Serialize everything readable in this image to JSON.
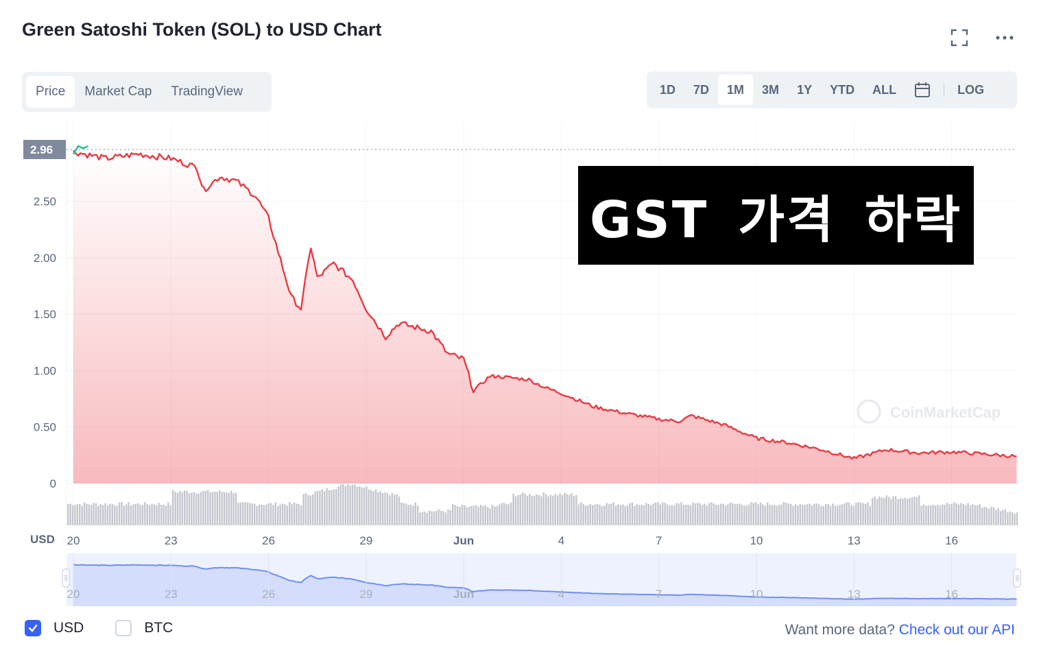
{
  "title": "Green Satoshi Token (SOL) to USD Chart",
  "icons": {
    "fullscreen": "fullscreen-icon",
    "more": "more-icon",
    "calendar": "calendar-icon",
    "check": "check-icon"
  },
  "chart_tabs": [
    {
      "label": "Price",
      "active": true
    },
    {
      "label": "Market Cap",
      "active": false
    },
    {
      "label": "TradingView",
      "active": false
    }
  ],
  "range_tabs": [
    {
      "label": "1D",
      "active": false
    },
    {
      "label": "7D",
      "active": false
    },
    {
      "label": "1M",
      "active": true
    },
    {
      "label": "3M",
      "active": false
    },
    {
      "label": "1Y",
      "active": false
    },
    {
      "label": "YTD",
      "active": false
    },
    {
      "label": "ALL",
      "active": false
    }
  ],
  "log_label": "LOG",
  "current_price_label": "2.96",
  "axis_currency": "USD",
  "watermark": "CoinMarketCap",
  "overlay_text": "GST 가격 하락",
  "colors": {
    "line": "#ea3943",
    "up_line": "#16c784",
    "accent": "#3861fb",
    "navigator": "#6f8ff0",
    "volume": "#c3c6cc"
  },
  "footer": {
    "usd_label": "USD",
    "usd_checked": true,
    "btc_label": "BTC",
    "btc_checked": false,
    "api_prefix": "Want more data? ",
    "api_link": "Check out our API"
  },
  "chart_data": {
    "type": "line",
    "y_ticks": [
      "0",
      "0.50",
      "1.00",
      "1.50",
      "2.00",
      "2.50"
    ],
    "ylim": [
      0,
      2.96
    ],
    "x_ticks": [
      "20",
      "23",
      "26",
      "29",
      "Jun",
      "4",
      "7",
      "10",
      "13",
      "16"
    ],
    "grid": true,
    "series": [
      {
        "values": [
          [
            "20",
            2.94
          ],
          [
            "21",
            2.88
          ],
          [
            "22",
            2.92
          ],
          [
            "23",
            2.88
          ],
          [
            "23.8",
            2.8
          ],
          [
            "24",
            2.6
          ],
          [
            "24.5",
            2.72
          ],
          [
            "25",
            2.68
          ],
          [
            "25.6",
            2.55
          ],
          [
            "26",
            2.35
          ],
          [
            "26.3",
            2.05
          ],
          [
            "26.7",
            1.65
          ],
          [
            "27",
            1.55
          ],
          [
            "27.3",
            2.1
          ],
          [
            "27.5",
            1.82
          ],
          [
            "28",
            1.95
          ],
          [
            "28.6",
            1.8
          ],
          [
            "29",
            1.55
          ],
          [
            "29.6",
            1.3
          ],
          [
            "30",
            1.42
          ],
          [
            "31",
            1.35
          ],
          [
            "31.5",
            1.15
          ],
          [
            "Jun",
            1.1
          ],
          [
            "1.3",
            0.82
          ],
          [
            "1.8",
            0.95
          ],
          [
            "2",
            0.95
          ],
          [
            "3",
            0.92
          ],
          [
            "3.5",
            0.85
          ],
          [
            "4",
            0.8
          ],
          [
            "5",
            0.68
          ],
          [
            "6",
            0.62
          ],
          [
            "7",
            0.57
          ],
          [
            "7.6",
            0.55
          ],
          [
            "8",
            0.6
          ],
          [
            "9",
            0.52
          ],
          [
            "10",
            0.4
          ],
          [
            "11",
            0.36
          ],
          [
            "12",
            0.3
          ],
          [
            "13",
            0.22
          ],
          [
            "14",
            0.3
          ],
          [
            "15",
            0.27
          ],
          [
            "16",
            0.28
          ],
          [
            "17",
            0.26
          ],
          [
            "18",
            0.24
          ]
        ]
      }
    ]
  }
}
